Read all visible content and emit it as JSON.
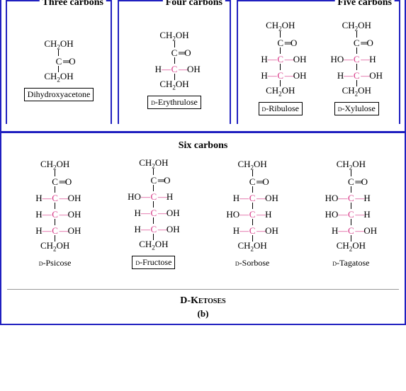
{
  "colors": {
    "border": "#2020c0",
    "chiral_c": "#d63384",
    "text": "#000000",
    "bg": "#ffffff"
  },
  "headings": {
    "three": "Three carbons",
    "four": "Four carbons",
    "five": "Five carbons",
    "six": "Six carbons",
    "footer_title": "D-Ketoses",
    "footer_sub": "(b)"
  },
  "glyphs": {
    "CH2OH_html": "CH<span class='sub'>2</span>OH",
    "C_eq_O": "C=O",
    "H": "H",
    "OH": "OH",
    "HO": "HO",
    "C": "C",
    "hbond": "—"
  },
  "molecules": {
    "dha": {
      "label": "Dihydroxyacetone",
      "boxed": true,
      "rows": [
        "CH2OH",
        "|",
        "C=O",
        "|",
        "CH2OH"
      ]
    },
    "erythrulose": {
      "label": "D-Erythrulose",
      "boxed": true,
      "rows": [
        "CH2OH",
        "|",
        "C=O",
        "|",
        "H-C-OH",
        "|",
        "CH2OH"
      ]
    },
    "ribulose": {
      "label": "D-Ribulose",
      "boxed": true,
      "rows": [
        "CH2OH",
        "|",
        "C=O",
        "|",
        "H-C-OH",
        "|",
        "H-C-OH",
        "|",
        "CH2OH"
      ]
    },
    "xylulose": {
      "label": "D-Xylulose",
      "boxed": true,
      "rows": [
        "CH2OH",
        "|",
        "C=O",
        "|",
        "HO-C-H",
        "|",
        "H-C-OH",
        "|",
        "CH2OH"
      ]
    },
    "psicose": {
      "label": "D-Psicose",
      "boxed": false,
      "rows": [
        "CH2OH",
        "|",
        "C=O",
        "|",
        "H-C-OH",
        "|",
        "H-C-OH",
        "|",
        "H-C-OH",
        "|",
        "CH2OH"
      ]
    },
    "fructose": {
      "label": "D-Fructose",
      "boxed": true,
      "rows": [
        "CH2OH",
        "|",
        "C=O",
        "|",
        "HO-C-H",
        "|",
        "H-C-OH",
        "|",
        "H-C-OH",
        "|",
        "CH2OH"
      ]
    },
    "sorbose": {
      "label": "D-Sorbose",
      "boxed": false,
      "rows": [
        "CH2OH",
        "|",
        "C=O",
        "|",
        "H-C-OH",
        "|",
        "HO-C-H",
        "|",
        "H-C-OH",
        "|",
        "CH2OH"
      ]
    },
    "tagatose": {
      "label": "D-Tagatose",
      "boxed": false,
      "rows": [
        "CH2OH",
        "|",
        "C=O",
        "|",
        "HO-C-H",
        "|",
        "HO-C-H",
        "|",
        "H-C-OH",
        "|",
        "CH2OH"
      ]
    }
  }
}
